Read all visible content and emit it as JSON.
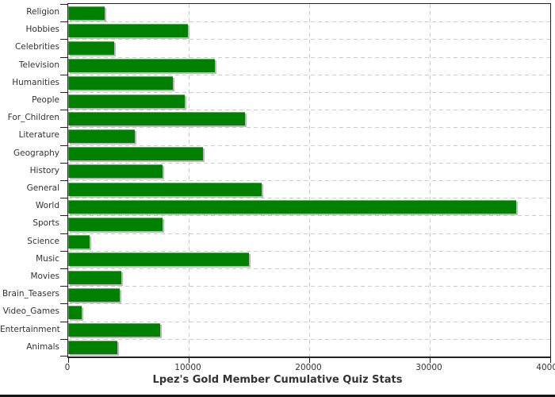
{
  "window": {
    "background": "#ffffff",
    "bottom_bar_color": "#151515"
  },
  "chart_data": {
    "type": "bar",
    "orientation": "horizontal",
    "title": "Lpez's Gold Member Cumulative Quiz Stats",
    "categories": [
      "Religion",
      "Hobbies",
      "Celebrities",
      "Television",
      "Humanities",
      "People",
      "For_Children",
      "Literature",
      "Geography",
      "History",
      "General",
      "World",
      "Sports",
      "Science",
      "Music",
      "Movies",
      "Brain_Teasers",
      "Video_Games",
      "Entertainment",
      "Animals"
    ],
    "values": [
      3050,
      9950,
      3800,
      12200,
      8700,
      9700,
      14700,
      5550,
      11200,
      7800,
      16050,
      37150,
      7800,
      1800,
      15000,
      4400,
      4250,
      1100,
      7650,
      4050
    ],
    "xlim": [
      0,
      40000
    ],
    "x_ticks": [
      0,
      10000,
      20000,
      30000,
      40000
    ],
    "x_tick_labels": [
      "0",
      "10000",
      "20000",
      "30000",
      "40000"
    ],
    "grid": true,
    "legend_position": "none",
    "colors": {
      "bar": "#008000",
      "bar_shadow": "#b9b9b9",
      "grid": "#cccccc",
      "axis": "#222222",
      "text": "#333333"
    }
  }
}
